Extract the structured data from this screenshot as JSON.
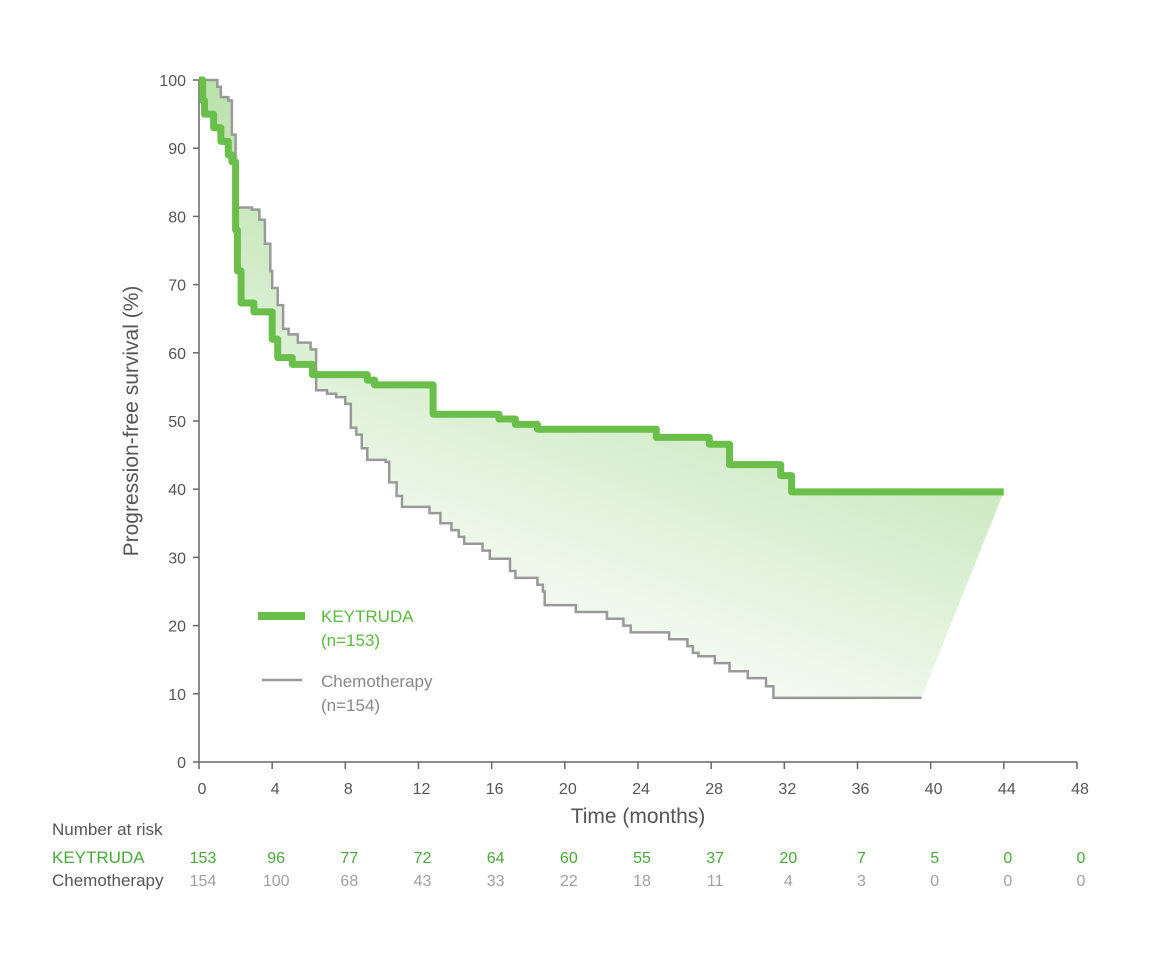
{
  "chart_data": {
    "type": "line",
    "subtype": "kaplan-meier step",
    "xlabel": "Time (months)",
    "ylabel": "Progression-free survival (%)",
    "xlim": [
      0,
      48
    ],
    "ylim": [
      0,
      100
    ],
    "xticks": [
      0,
      4,
      8,
      12,
      16,
      20,
      24,
      28,
      32,
      36,
      40,
      44,
      48
    ],
    "yticks": [
      0,
      10,
      20,
      30,
      40,
      50,
      60,
      70,
      80,
      90,
      100
    ],
    "grid": false,
    "legend_placement": "lower-left",
    "shaded_region_between_series": true,
    "series": [
      {
        "name": "KEYTRUDA",
        "n_label": "(n=153)",
        "color": "#6abf4b",
        "points": [
          [
            0,
            100
          ],
          [
            0.2,
            97
          ],
          [
            0.3,
            95
          ],
          [
            0.8,
            93
          ],
          [
            1.2,
            91
          ],
          [
            1.6,
            89
          ],
          [
            1.8,
            88
          ],
          [
            2.0,
            78
          ],
          [
            2.1,
            72
          ],
          [
            2.3,
            67.3
          ],
          [
            3.0,
            66
          ],
          [
            3.9,
            66
          ],
          [
            4.0,
            62
          ],
          [
            4.3,
            59.3
          ],
          [
            5.1,
            58.3
          ],
          [
            6.2,
            56.8
          ],
          [
            9.2,
            56
          ],
          [
            9.6,
            55.3
          ],
          [
            12.2,
            55.3
          ],
          [
            12.8,
            51
          ],
          [
            16.4,
            50.3
          ],
          [
            17.3,
            49.5
          ],
          [
            18.5,
            48.8
          ],
          [
            25.0,
            47.6
          ],
          [
            27.9,
            46.6
          ],
          [
            29.0,
            43.6
          ],
          [
            31.8,
            42
          ],
          [
            32.4,
            39.6
          ],
          [
            44,
            39.6
          ]
        ]
      },
      {
        "name": "Chemotherapy",
        "n_label": "(n=154)",
        "color": "#999999",
        "points": [
          [
            0,
            100
          ],
          [
            1.0,
            99
          ],
          [
            1.2,
            97.5
          ],
          [
            1.6,
            97
          ],
          [
            1.8,
            92
          ],
          [
            2.0,
            86
          ],
          [
            2.1,
            81.3
          ],
          [
            2.9,
            81
          ],
          [
            3.3,
            79.5
          ],
          [
            3.6,
            76
          ],
          [
            3.9,
            72
          ],
          [
            4.0,
            69.5
          ],
          [
            4.3,
            67
          ],
          [
            4.6,
            63.5
          ],
          [
            4.9,
            62.7
          ],
          [
            5.4,
            61.5
          ],
          [
            6.1,
            60.5
          ],
          [
            6.4,
            54.5
          ],
          [
            7.0,
            54
          ],
          [
            7.5,
            53.5
          ],
          [
            8.0,
            52.5
          ],
          [
            8.3,
            49
          ],
          [
            8.6,
            48
          ],
          [
            8.9,
            46
          ],
          [
            9.2,
            44.3
          ],
          [
            10.2,
            44
          ],
          [
            10.4,
            41
          ],
          [
            10.8,
            39
          ],
          [
            11.1,
            37.4
          ],
          [
            12.6,
            36.5
          ],
          [
            13.2,
            35
          ],
          [
            13.8,
            34
          ],
          [
            14.2,
            33
          ],
          [
            14.5,
            32
          ],
          [
            15.5,
            31
          ],
          [
            15.9,
            29.8
          ],
          [
            17.0,
            28
          ],
          [
            17.3,
            27
          ],
          [
            18.5,
            26
          ],
          [
            18.8,
            25
          ],
          [
            18.9,
            23
          ],
          [
            20.6,
            22
          ],
          [
            22.3,
            21
          ],
          [
            23.2,
            20
          ],
          [
            23.6,
            19
          ],
          [
            25.7,
            18
          ],
          [
            26.7,
            17
          ],
          [
            27.0,
            16
          ],
          [
            27.3,
            15.5
          ],
          [
            28.2,
            14.5
          ],
          [
            29.0,
            13.3
          ],
          [
            30.0,
            12.3
          ],
          [
            31.0,
            11.1
          ],
          [
            31.4,
            9.4
          ],
          [
            39.5,
            9.4
          ]
        ]
      }
    ],
    "number_at_risk": {
      "title": "Number at risk",
      "rows": [
        {
          "label": "KEYTRUDA",
          "values": [
            "153",
            "96",
            "77",
            "72",
            "64",
            "60",
            "55",
            "37",
            "20",
            "7",
            "5",
            "0",
            "0"
          ]
        },
        {
          "label": "Chemotherapy",
          "values": [
            "154",
            "100",
            "68",
            "43",
            "33",
            "22",
            "18",
            "11",
            "4",
            "3",
            "0",
            "0",
            "0"
          ]
        }
      ]
    }
  },
  "colors": {
    "keytruda": "#6abf4b",
    "chemo": "#999999",
    "axis": "#666666",
    "text": "#555555",
    "risk_keytruda": "#4aa83a",
    "risk_chemo": "#a0a0a0"
  }
}
